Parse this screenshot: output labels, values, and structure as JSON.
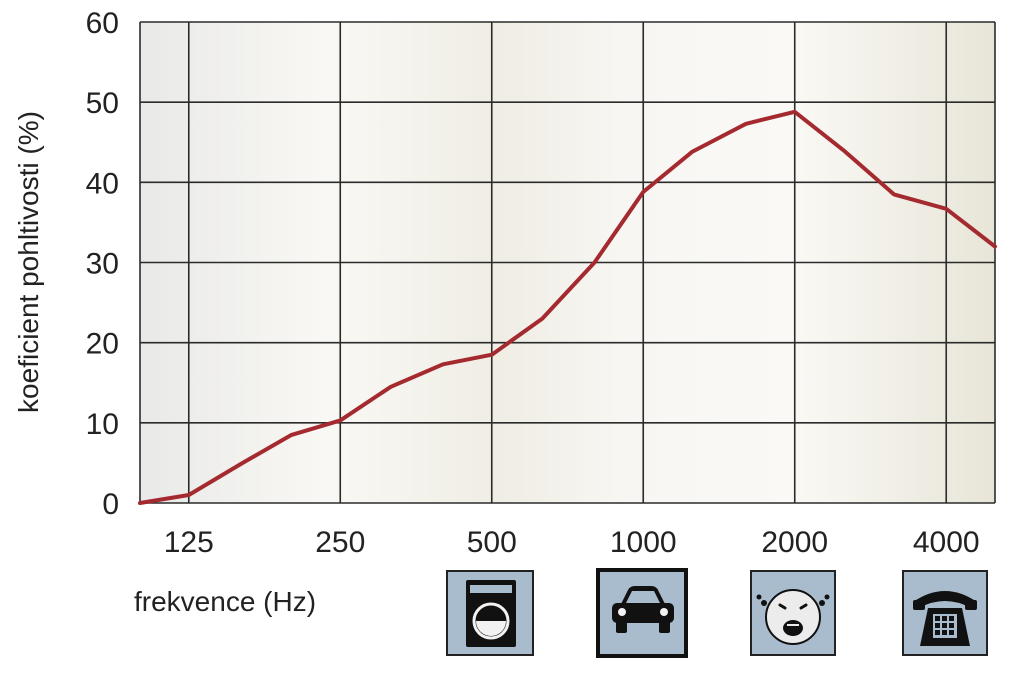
{
  "chart_data": {
    "type": "line",
    "title": "",
    "xlabel": "frekvence (Hz)",
    "ylabel": "koeficient pohltivosti (%)",
    "ylim": [
      0,
      60
    ],
    "yticks": [
      "0",
      "10",
      "20",
      "30",
      "40",
      "50",
      "60"
    ],
    "xticks": [
      "125",
      "250",
      "500",
      "1000",
      "2000",
      "4000"
    ],
    "x_scale": "log2",
    "xlim": [
      100,
      5000
    ],
    "grid": true,
    "series": [
      {
        "color": "#a52a2f",
        "points": [
          {
            "x": 100,
            "y": 0
          },
          {
            "x": 125,
            "y": 1
          },
          {
            "x": 160,
            "y": 5
          },
          {
            "x": 200,
            "y": 8.5
          },
          {
            "x": 250,
            "y": 10.3
          },
          {
            "x": 315,
            "y": 14.5
          },
          {
            "x": 400,
            "y": 17.3
          },
          {
            "x": 500,
            "y": 18.5
          },
          {
            "x": 630,
            "y": 23
          },
          {
            "x": 800,
            "y": 30
          },
          {
            "x": 1000,
            "y": 38.8
          },
          {
            "x": 1250,
            "y": 43.8
          },
          {
            "x": 1600,
            "y": 47.3
          },
          {
            "x": 2000,
            "y": 48.8
          },
          {
            "x": 2500,
            "y": 44
          },
          {
            "x": 3150,
            "y": 38.5
          },
          {
            "x": 4000,
            "y": 36.7
          },
          {
            "x": 5000,
            "y": 32
          }
        ]
      }
    ]
  },
  "icons": [
    {
      "name": "washing-machine-icon",
      "frequency": "500",
      "emphasized": false
    },
    {
      "name": "car-icon",
      "frequency": "1000",
      "emphasized": true
    },
    {
      "name": "crying-baby-icon",
      "frequency": "2000",
      "emphasized": false
    },
    {
      "name": "telephone-icon",
      "frequency": "4000",
      "emphasized": false
    }
  ],
  "colors": {
    "line": "#a52a2f",
    "grid": "#2b2b2b",
    "icon_bg": "#a9bccd",
    "icon_fg": "#111111"
  }
}
